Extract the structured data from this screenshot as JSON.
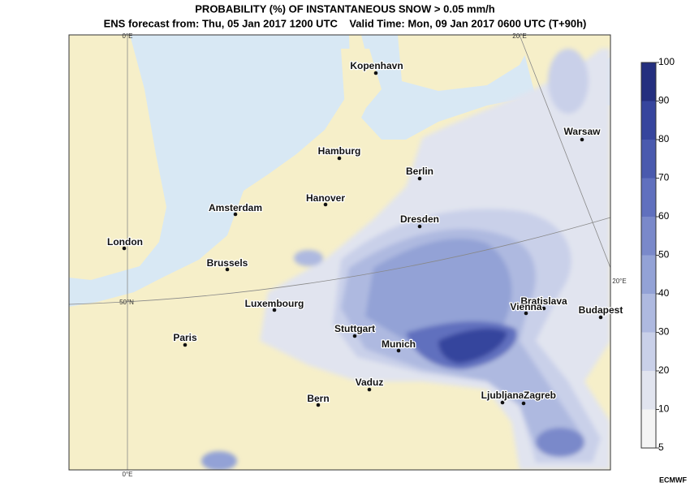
{
  "title": "PROBABILITY (%) OF INSTANTANEOUS SNOW > 0.05 mm/h",
  "subtitle": "ENS forecast from: Thu, 05 Jan 2017 1200 UTC    Valid Time: Mon, 09 Jan 2017 0600 UTC (T+90h)",
  "map": {
    "cities": [
      "Kopenhavn",
      "Hamburg",
      "Berlin",
      "Warsaw",
      "Hanover",
      "Amsterdam",
      "Dresden",
      "London",
      "Brussels",
      "Luxembourg",
      "Bratislava",
      "Vienna",
      "Budapest",
      "Paris",
      "Stuttgart",
      "Munich",
      "Vaduz",
      "Bern",
      "Ljubljana",
      "Zagreb"
    ],
    "graticule_labels": [
      "0°E",
      "20°E",
      "20°E",
      "50°N",
      "0°E"
    ]
  },
  "colorbar": {
    "ticks": [
      5,
      10,
      20,
      30,
      40,
      50,
      60,
      70,
      80,
      90,
      100
    ],
    "colors": [
      "#f4f4f4",
      "#e1e4ef",
      "#c9d0e9",
      "#aeb9e0",
      "#93a2d6",
      "#7a89ca",
      "#6070be",
      "#4a5aae",
      "#36459d",
      "#242f7f"
    ]
  },
  "credit": "ECMWF"
}
